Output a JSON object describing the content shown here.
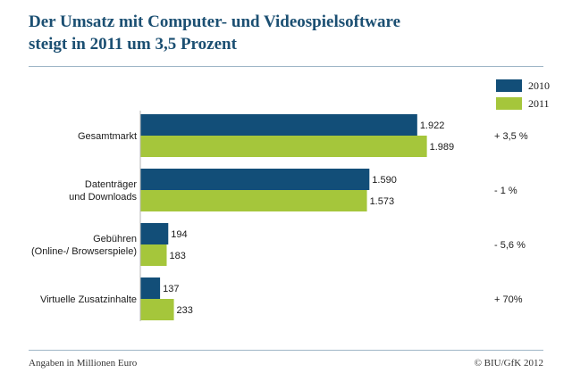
{
  "title_line1": "Der Umsatz mit Computer- und Videospielsoftware",
  "title_line2": "steigt in 2011 um 3,5 Prozent",
  "footer_left": "Angaben in Millionen Euro",
  "footer_right": "© BIU/GfK 2012",
  "colors": {
    "title": "#1b4f72",
    "series_2010": "#124e78",
    "series_2011": "#a5c63b"
  },
  "chart_data": {
    "type": "bar",
    "orientation": "horizontal",
    "categories": [
      [
        "Gesamtmarkt"
      ],
      [
        "Datenträger",
        "und Downloads"
      ],
      [
        "Gebühren",
        "(Online-/ Browserspiele)"
      ],
      [
        "Virtuelle Zusatzinhalte"
      ]
    ],
    "series": [
      {
        "name": "2010",
        "values": [
          1922,
          1590,
          194,
          137
        ],
        "labels": [
          "1.922",
          "1.590",
          "194",
          "137"
        ],
        "color": "#124e78"
      },
      {
        "name": "2011",
        "values": [
          1989,
          1573,
          183,
          233
        ],
        "labels": [
          "1.989",
          "1.573",
          "183",
          "233"
        ],
        "color": "#a5c63b"
      }
    ],
    "changes": [
      "+ 3,5 %",
      "- 1 %",
      "- 5,6 %",
      "+ 70%"
    ],
    "xlim": [
      0,
      2000
    ],
    "legend": "top-right",
    "grid": false
  }
}
